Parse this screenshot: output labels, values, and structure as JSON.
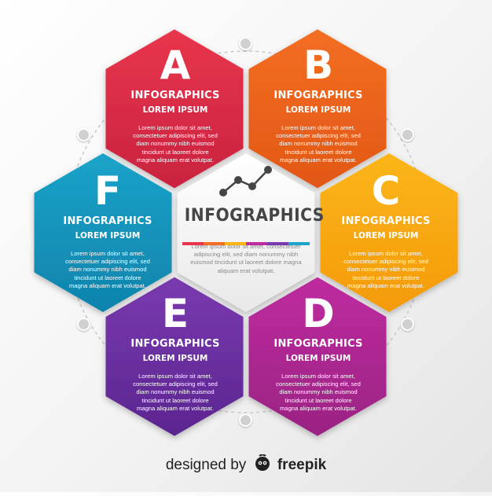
{
  "hexagons": [
    {
      "id": "A",
      "letter": "A",
      "title": "INFOGRAPHICS",
      "subtitle": "LOREM IPSUM",
      "body": [
        "Lorem ipsum dolor sit amet,",
        "consectetuer adipiscing elit, sed",
        "diam nonummy nibh euismod",
        "tincidunt ut laoreet dolore",
        "magna aliquam erat volutpat."
      ],
      "color": "#e8354c",
      "color_dark": "#c92340"
    },
    {
      "id": "B",
      "letter": "B",
      "title": "INFOGRAPHICS",
      "subtitle": "LOREM IPSUM",
      "body": [
        "Lorem ipsum dolor sit amet,",
        "consectetuer adipiscing elit, sed",
        "diam nonummy nibh euismod",
        "tincidunt ut laoreet dolore",
        "magna aliquam erat volutpat."
      ],
      "color": "#f36e22",
      "color_dark": "#e25716"
    },
    {
      "id": "C",
      "letter": "C",
      "title": "INFOGRAPHICS",
      "subtitle": "LOREM IPSUM",
      "body": [
        "Lorem ipsum dolor sit amet,",
        "consectetuer adipiscing elit, sed",
        "diam nonummy nibh euismod",
        "tincidunt ut laoreet dolore",
        "magna aliquam erat volutpat."
      ],
      "color": "#fbb616",
      "color_dark": "#f49a0d"
    },
    {
      "id": "D",
      "letter": "D",
      "title": "INFOGRAPHICS",
      "subtitle": "LOREM IPSUM",
      "body": [
        "Lorem ipsum dolor sit amet,",
        "consectetuer adipiscing elit, sed",
        "diam nonummy nibh euismod",
        "tincidunt ut laoreet dolore",
        "magna aliquam erat volutpat."
      ],
      "color": "#bf2ba0",
      "color_dark": "#9a2383"
    },
    {
      "id": "E",
      "letter": "E",
      "title": "INFOGRAPHICS",
      "subtitle": "LOREM IPSUM",
      "body": [
        "Lorem ipsum dolor sit amet,",
        "consectetuer adipiscing elit, sed",
        "diam nonummy nibh euismod",
        "tincidunt ut laoreet dolore",
        "magna aliquam erat volutpat."
      ],
      "color": "#7a3ab0",
      "color_dark": "#5b2590"
    },
    {
      "id": "F",
      "letter": "F",
      "title": "INFOGRAPHICS",
      "subtitle": "LOREM IPSUM",
      "body": [
        "Lorem ipsum dolor sit amet,",
        "consectetuer adipiscing elit, sed",
        "diam nonummy nibh euismod",
        "tincidunt ut laoreet dolore",
        "magna aliquam erat volutpat."
      ],
      "color": "#1ba3c9",
      "color_dark": "#0f83ac"
    }
  ],
  "center": {
    "title": "INFOGRAPHICS",
    "body": [
      "Lorem ipsum dolor sit amet, consectetuer",
      "adipiscing elit, sed diam nonummy nibh",
      "euismod tincidunt ut laoreet dolore magna",
      "aliquam erat volutpat."
    ],
    "bar_colors": [
      "#e8354c",
      "#f36e22",
      "#fbb616",
      "#bf2ba0",
      "#7a3ab0",
      "#1ba3c9"
    ],
    "icon": "line-chart-icon"
  },
  "credit": {
    "prefix": "designed by",
    "brand": "freepik",
    "logo_icon": "freepik-logo-icon"
  }
}
